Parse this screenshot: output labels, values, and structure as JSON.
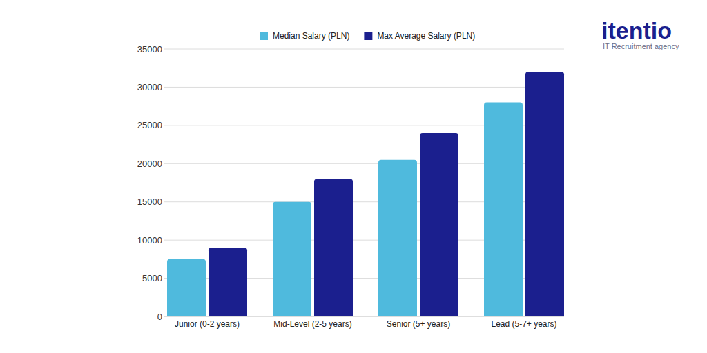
{
  "chart_data": {
    "type": "bar",
    "categories": [
      "Junior (0-2 years)",
      "Mid-Level (2-5 years)",
      "Senior (5+ years)",
      "Lead (5-7+ years)"
    ],
    "series": [
      {
        "name": "Median Salary (PLN)",
        "color": "#4fbadd",
        "values": [
          7500,
          15000,
          20500,
          28000
        ]
      },
      {
        "name": "Max Average Salary (PLN)",
        "color": "#1b1f8e",
        "values": [
          9000,
          18000,
          24000,
          32000
        ]
      }
    ],
    "ylim": [
      0,
      35000
    ],
    "yticks": [
      0,
      5000,
      10000,
      15000,
      20000,
      25000,
      30000,
      35000
    ],
    "grid": true,
    "legend": "top",
    "annotations": [
      "itentio",
      "IT Recruitment agency"
    ]
  }
}
